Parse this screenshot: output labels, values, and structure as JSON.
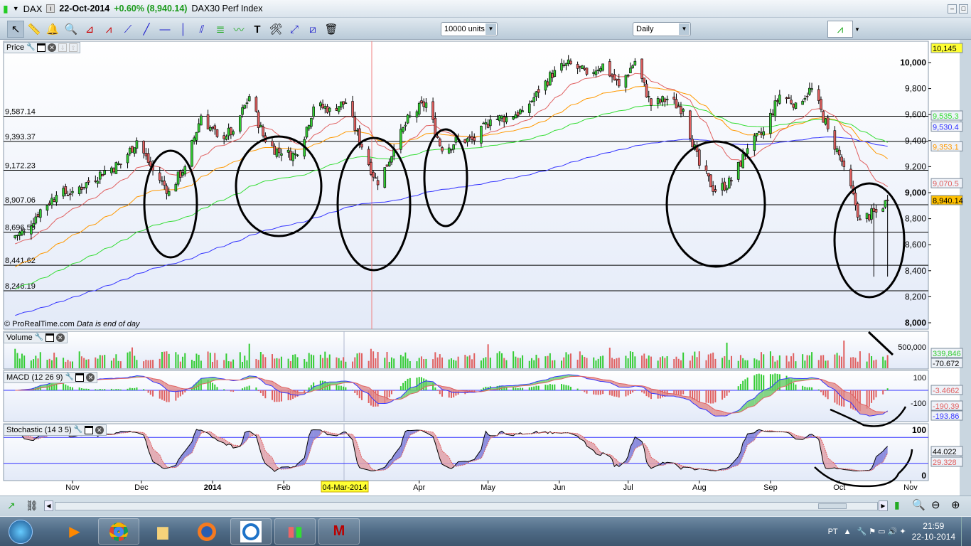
{
  "titlebar": {
    "symbol": "DAX",
    "date": "22-Oct-2014",
    "change": "+0.60% (8,940.14)",
    "name": "DAX30 Perf Index"
  },
  "toolbar": {
    "tools": [
      "pointer",
      "ruler",
      "alert-bell",
      "zoom",
      "triangle",
      "channel",
      "segment",
      "line",
      "horizontal-line",
      "vertical-line",
      "parallel-lines",
      "fibonacci",
      "trendline",
      "text",
      "tools",
      "reset-lines",
      "delete-lines",
      "trash"
    ],
    "units": "10000 units",
    "timeframe": "Daily"
  },
  "panels": {
    "price": {
      "label": "Price",
      "copyright": "© ProRealTime.com",
      "note": "Data is end of day"
    },
    "volume": {
      "label": "Volume"
    },
    "macd": {
      "label": "MACD (12 26 9)"
    },
    "stochastic": {
      "label": "Stochastic (14 3 5)"
    }
  },
  "chart_data": {
    "type": "candlestick",
    "price_axis": {
      "range": [
        8000,
        10145
      ],
      "ticks": [
        8000,
        8200,
        8400,
        8600,
        8800,
        9000,
        9200,
        9400,
        9600,
        9800,
        10000
      ],
      "tick_labels": [
        "8,000",
        "8,200",
        "8,400",
        "8,600",
        "8,800",
        "9,000",
        "9,200",
        "9,400",
        "9,600",
        "9,800",
        "10,000"
      ]
    },
    "horizontal_levels": [
      {
        "value": 9587.14,
        "label": "9,587.14"
      },
      {
        "value": 9393.37,
        "label": "9,393.37"
      },
      {
        "value": 9172.23,
        "label": "9,172.23"
      },
      {
        "value": 8907.06,
        "label": "8,907.06"
      },
      {
        "value": 8696.59,
        "label": "8,696.59"
      },
      {
        "value": 8441.62,
        "label": "8,441.62"
      },
      {
        "value": 8246.19,
        "label": "8,246.19"
      }
    ],
    "axis_badges": [
      {
        "label": "10,145",
        "value": 10145,
        "color": "#000000",
        "bg": "#ffff33"
      },
      {
        "label": "9,535.3",
        "value": 9560,
        "color": "#33dd33",
        "bg": "#eef2f8"
      },
      {
        "label": "9,530.4",
        "value": 9505,
        "color": "#3333ff",
        "bg": "#eef2f8"
      },
      {
        "label": "9,353.1",
        "value": 9353,
        "color": "#ff9900",
        "bg": "#eef2f8"
      },
      {
        "label": "9,070.5",
        "value": 9070,
        "color": "#e06060",
        "bg": "#eef2f8"
      },
      {
        "label": "8,940.14",
        "value": 8940,
        "color": "#000000",
        "bg": "#ffc000"
      }
    ],
    "weekly_closes": [
      [
        "2013-10-04",
        8650
      ],
      [
        "2013-10-11",
        8700
      ],
      [
        "2013-10-18",
        8870
      ],
      [
        "2013-10-25",
        8980
      ],
      [
        "2013-11-01",
        9010
      ],
      [
        "2013-11-08",
        9080
      ],
      [
        "2013-11-15",
        9170
      ],
      [
        "2013-11-22",
        9220
      ],
      [
        "2013-11-29",
        9400
      ],
      [
        "2013-12-06",
        9170
      ],
      [
        "2013-12-13",
        9010
      ],
      [
        "2013-12-20",
        9200
      ],
      [
        "2013-12-27",
        9590
      ],
      [
        "2014-01-03",
        9430
      ],
      [
        "2014-01-10",
        9470
      ],
      [
        "2014-01-17",
        9740
      ],
      [
        "2014-01-24",
        9390
      ],
      [
        "2014-01-31",
        9300
      ],
      [
        "2014-02-07",
        9290
      ],
      [
        "2014-02-14",
        9660
      ],
      [
        "2014-02-21",
        9650
      ],
      [
        "2014-02-28",
        9690
      ],
      [
        "2014-03-07",
        9350
      ],
      [
        "2014-03-14",
        9060
      ],
      [
        "2014-03-21",
        9340
      ],
      [
        "2014-03-28",
        9590
      ],
      [
        "2014-04-04",
        9690
      ],
      [
        "2014-04-11",
        9320
      ],
      [
        "2014-04-18",
        9410
      ],
      [
        "2014-04-25",
        9400
      ],
      [
        "2014-05-02",
        9560
      ],
      [
        "2014-05-09",
        9580
      ],
      [
        "2014-05-16",
        9630
      ],
      [
        "2014-05-23",
        9770
      ],
      [
        "2014-05-30",
        9940
      ],
      [
        "2014-06-06",
        9990
      ],
      [
        "2014-06-13",
        9910
      ],
      [
        "2014-06-20",
        9990
      ],
      [
        "2014-06-27",
        9820
      ],
      [
        "2014-07-04",
        10010
      ],
      [
        "2014-07-11",
        9670
      ],
      [
        "2014-07-18",
        9720
      ],
      [
        "2014-07-25",
        9640
      ],
      [
        "2014-08-01",
        9210
      ],
      [
        "2014-08-08",
        9010
      ],
      [
        "2014-08-15",
        9090
      ],
      [
        "2014-08-22",
        9340
      ],
      [
        "2014-08-29",
        9470
      ],
      [
        "2014-09-05",
        9750
      ],
      [
        "2014-09-12",
        9690
      ],
      [
        "2014-09-19",
        9800
      ],
      [
        "2014-09-26",
        9490
      ],
      [
        "2014-10-03",
        9200
      ],
      [
        "2014-10-10",
        8790
      ],
      [
        "2014-10-17",
        8850
      ],
      [
        "2014-10-22",
        8940
      ]
    ],
    "moving_averages": [
      {
        "color": "#e06060"
      },
      {
        "color": "#ff9900"
      },
      {
        "color": "#33dd33"
      },
      {
        "color": "#3333ff"
      }
    ],
    "volume": {
      "tick_labels": [
        "500,000"
      ],
      "badges": [
        {
          "label": "339,846",
          "color": "#33cc33"
        },
        {
          "label": "-70.672",
          "color": "#000000"
        }
      ]
    },
    "macd": {
      "tick_labels": [
        "100",
        "-100"
      ],
      "badges": [
        {
          "label": "-3.4662",
          "color": "#e06060"
        },
        {
          "label": "-190.39",
          "color": "#e06060"
        },
        {
          "label": "-193.86",
          "color": "#3333ff"
        }
      ]
    },
    "stochastic": {
      "levels": [
        80,
        20
      ],
      "tick_labels": [
        "100",
        "0"
      ],
      "badges": [
        {
          "label": "44.022",
          "color": "#000000"
        },
        {
          "label": "29.328",
          "color": "#e06060"
        }
      ]
    },
    "time_axis": [
      {
        "date": "2013-11-01",
        "label": "Nov"
      },
      {
        "date": "2013-12-01",
        "label": "Dec"
      },
      {
        "date": "2014-01-01",
        "label": "2014",
        "bold": true
      },
      {
        "date": "2014-02-01",
        "label": "Feb"
      },
      {
        "date": "2014-04-01",
        "label": "Apr"
      },
      {
        "date": "2014-05-01",
        "label": "May"
      },
      {
        "date": "2014-06-01",
        "label": "Jun"
      },
      {
        "date": "2014-07-01",
        "label": "Jul"
      },
      {
        "date": "2014-08-01",
        "label": "Aug"
      },
      {
        "date": "2014-09-01",
        "label": "Sep"
      },
      {
        "date": "2014-10-01",
        "label": "Oct"
      },
      {
        "date": "2014-11-01",
        "label": "Nov"
      }
    ],
    "cursor_label": "04-Mar-2014",
    "colors": {
      "up": "#33cc33",
      "down": "#e06060",
      "background": "#eef2fb"
    }
  },
  "taskbar": {
    "language": "PT",
    "time": "21:59",
    "date": "22-10-2014",
    "apps": [
      "windows-media-player",
      "chrome",
      "file-explorer",
      "firefox",
      "app-circle",
      "prorealtime",
      "mcafee"
    ]
  }
}
